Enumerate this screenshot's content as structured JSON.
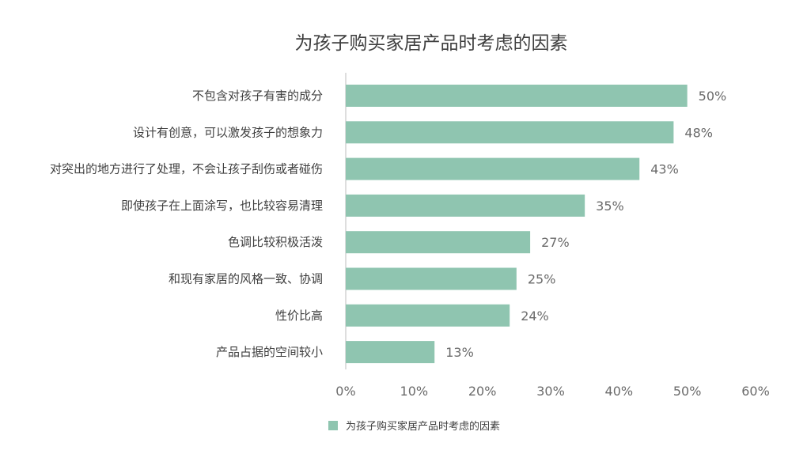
{
  "chart_data": {
    "type": "bar",
    "orientation": "horizontal",
    "title": "为孩子购买家居产品时考虑的因素",
    "categories": [
      "不包含对孩子有害的成分",
      "设计有创意，可以激发孩子的想象力",
      "对突出的地方进行了处理，不会让孩子刮伤或者碰伤",
      "即使孩子在上面涂写，也比较容易清理",
      "色调比较积极活泼",
      "和现有家居的风格一致、协调",
      "性价比高",
      "产品占据的空间较小"
    ],
    "series": [
      {
        "name": "为孩子购买家居产品时考虑的因素",
        "values": [
          50,
          48,
          43,
          35,
          27,
          25,
          24,
          13
        ],
        "value_labels": [
          "50%",
          "48%",
          "43%",
          "35%",
          "27%",
          "25%",
          "24%",
          "13%"
        ],
        "color": "#8fc5b0"
      }
    ],
    "xlim": [
      0,
      60
    ],
    "xticks": [
      0,
      10,
      20,
      30,
      40,
      50,
      60
    ],
    "xtick_labels": [
      "0%",
      "10%",
      "20%",
      "30%",
      "40%",
      "50%",
      "60%"
    ],
    "xlabel": "",
    "ylabel": "",
    "grid": false,
    "legend_position": "bottom-center"
  }
}
